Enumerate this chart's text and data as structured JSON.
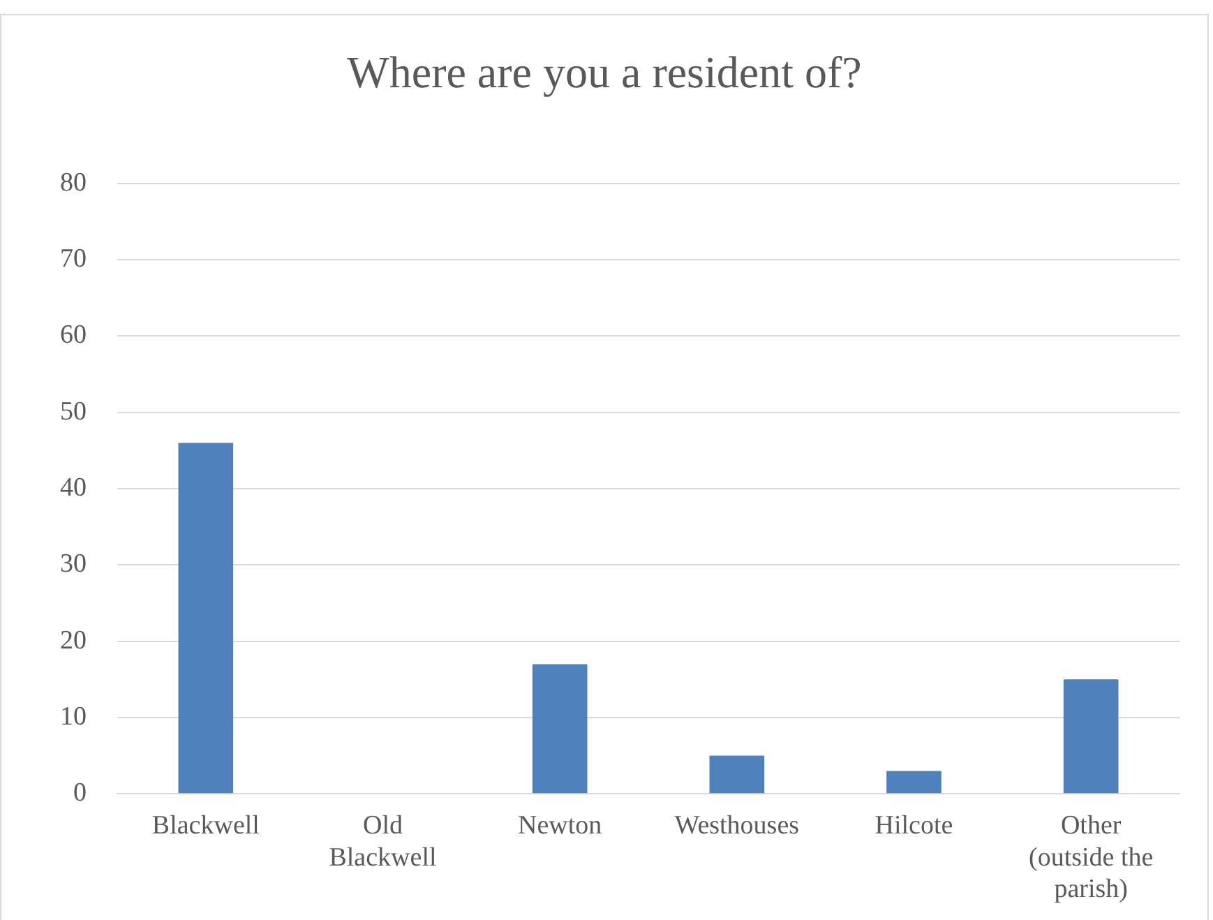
{
  "chart_data": {
    "type": "bar",
    "title": "Where are you a resident of?",
    "categories": [
      "Blackwell",
      "Old Blackwell",
      "Newton",
      "Westhouses",
      "Hilcote",
      "Other (outside the parish)"
    ],
    "values": [
      46,
      0,
      17,
      5,
      3,
      15
    ],
    "color": "#4f81bd",
    "ylim": [
      0,
      80
    ],
    "yticks": [
      0,
      10,
      20,
      30,
      40,
      50,
      60,
      70,
      80
    ],
    "grid": "y"
  }
}
